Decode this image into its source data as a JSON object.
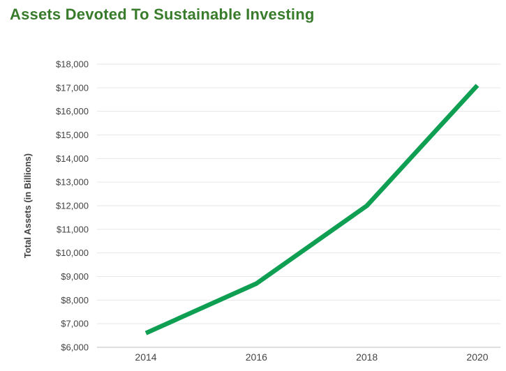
{
  "header": {
    "title": "Assets Devoted To Sustainable Investing",
    "title_color": "#387c2b"
  },
  "chart_data": {
    "type": "line",
    "title": "Assets Devoted To Sustainable Investing",
    "xlabel": "",
    "ylabel": "Total Assets (in Billions)",
    "x": [
      2014,
      2016,
      2018,
      2020
    ],
    "xticks": [
      "2014",
      "2016",
      "2018",
      "2020"
    ],
    "series": [
      {
        "name": "Total Assets",
        "values": [
          6600,
          8700,
          12000,
          17100
        ],
        "color": "#0f9f53"
      }
    ],
    "ylim": [
      6000,
      18000
    ],
    "ytick_step": 1000,
    "ytick_values": [
      6000,
      7000,
      8000,
      9000,
      10000,
      11000,
      12000,
      13000,
      14000,
      15000,
      16000,
      17000,
      18000
    ],
    "yticks": [
      "$6,000",
      "$7,000",
      "$8,000",
      "$9,000",
      "$10,000",
      "$11,000",
      "$12,000",
      "$13,000",
      "$14,000",
      "$15,000",
      "$16,000",
      "$17,000",
      "$18,000"
    ],
    "grid": true,
    "legend": "none",
    "gridline_color": "#e6e6e6",
    "baseline_color": "#cccccc",
    "tick_color": "#444444",
    "axis_title_color": "#424242",
    "line_width": 6.5
  }
}
